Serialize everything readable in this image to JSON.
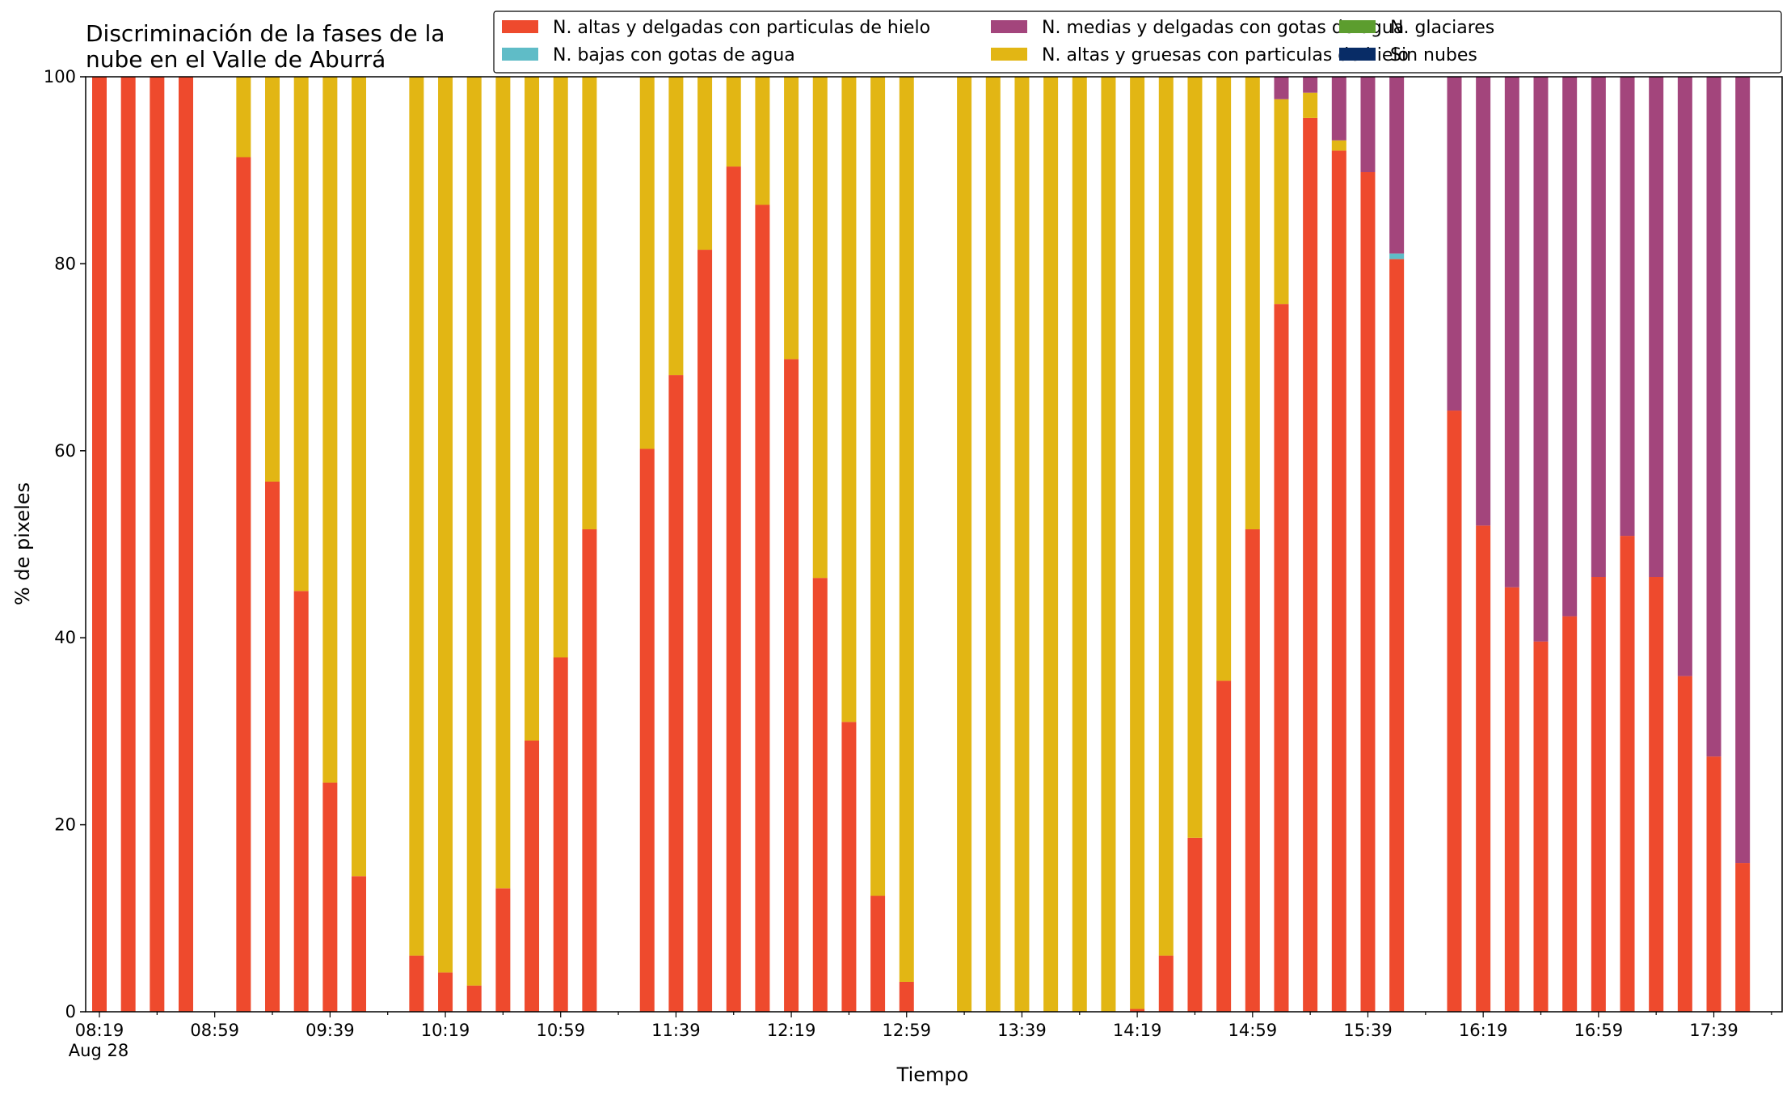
{
  "chart_data": {
    "type": "bar",
    "stacked": true,
    "title_lines": [
      "Discriminación de la fases de la",
      "nube en el Valle de Aburrá"
    ],
    "xlabel": "Tiempo",
    "ylabel": "% de pixeles",
    "ylim": [
      0,
      100
    ],
    "yticks": [
      0,
      20,
      40,
      60,
      80,
      100
    ],
    "grid": false,
    "legend_position": "top-right",
    "x_start": "08:19",
    "x_step_minutes": 10,
    "x_tick_labels": [
      "08:19",
      "08:59",
      "09:39",
      "10:19",
      "10:59",
      "11:39",
      "12:19",
      "12:59",
      "13:39",
      "14:19",
      "14:59",
      "15:39",
      "16:19",
      "16:59",
      "17:39"
    ],
    "x_date_label": "Aug 28",
    "times": [
      "08:19",
      "08:29",
      "08:39",
      "08:49",
      "08:59",
      "09:09",
      "09:19",
      "09:29",
      "09:39",
      "09:49",
      "09:59",
      "10:09",
      "10:19",
      "10:29",
      "10:39",
      "10:49",
      "10:59",
      "11:09",
      "11:19",
      "11:29",
      "11:39",
      "11:49",
      "11:59",
      "12:09",
      "12:19",
      "12:29",
      "12:39",
      "12:49",
      "12:59",
      "13:09",
      "13:19",
      "13:29",
      "13:39",
      "13:49",
      "13:59",
      "14:09",
      "14:19",
      "14:29",
      "14:39",
      "14:49",
      "14:59",
      "15:09",
      "15:19",
      "15:29",
      "15:39",
      "15:49",
      "15:59",
      "16:09",
      "16:19",
      "16:29",
      "16:39",
      "16:49",
      "16:59",
      "17:09",
      "17:19",
      "17:29",
      "17:39",
      "17:49"
    ],
    "series": [
      {
        "name": "N. altas y delgadas con particulas de hielo",
        "color": "#ee4a2d",
        "values": [
          100,
          100,
          100,
          100,
          null,
          91.4,
          56.7,
          45.0,
          24.5,
          14.5,
          null,
          6.0,
          4.2,
          2.8,
          13.2,
          29.0,
          37.9,
          51.6,
          null,
          60.2,
          68.1,
          81.5,
          90.4,
          86.3,
          69.8,
          46.4,
          31.0,
          12.4,
          3.2,
          null,
          0,
          0,
          0,
          0,
          0,
          0,
          0.3,
          6.0,
          18.6,
          35.4,
          51.6,
          75.7,
          95.6,
          92.1,
          89.8,
          80.5,
          null,
          64.3,
          52.0,
          45.4,
          39.6,
          42.3,
          46.5,
          50.9,
          46.5,
          35.9,
          27.3,
          15.9
        ]
      },
      {
        "name": "N. altas y gruesas con particulas de hielo",
        "color": "#e2b614",
        "values": [
          0,
          0,
          0,
          0,
          null,
          8.6,
          43.3,
          55.0,
          75.5,
          85.5,
          null,
          94.0,
          95.8,
          97.2,
          86.8,
          71.0,
          62.1,
          48.4,
          null,
          39.8,
          31.9,
          18.5,
          9.6,
          13.7,
          30.2,
          53.6,
          69.0,
          87.6,
          96.8,
          null,
          100,
          100,
          100,
          100,
          100,
          100,
          99.7,
          94.0,
          81.4,
          64.6,
          48.4,
          21.9,
          2.7,
          1.1,
          0,
          0,
          null,
          0,
          0,
          0,
          0,
          0,
          0,
          0,
          0,
          0,
          0,
          0
        ]
      },
      {
        "name": "N. bajas con gotas de agua",
        "color": "#5fbcc7",
        "values": [
          0,
          0,
          0,
          0,
          null,
          0,
          0,
          0,
          0,
          0,
          null,
          0,
          0,
          0,
          0,
          0,
          0,
          0,
          null,
          0,
          0,
          0,
          0,
          0,
          0,
          0,
          0,
          0,
          0,
          null,
          0,
          0,
          0,
          0,
          0,
          0,
          0,
          0,
          0,
          0,
          0,
          0,
          0,
          0,
          0,
          0.6,
          null,
          0,
          0,
          0,
          0,
          0,
          0,
          0,
          0,
          0,
          0,
          0
        ]
      },
      {
        "name": "N. medias y delgadas con gotas de agua",
        "color": "#a3457c",
        "values": [
          0,
          0,
          0,
          0,
          null,
          0,
          0,
          0,
          0,
          0,
          null,
          0,
          0,
          0,
          0,
          0,
          0,
          0,
          null,
          0,
          0,
          0,
          0,
          0,
          0,
          0,
          0,
          0,
          0,
          null,
          0,
          0,
          0,
          0,
          0,
          0,
          0,
          0,
          0,
          0,
          0,
          2.4,
          1.7,
          6.8,
          10.2,
          18.9,
          null,
          35.7,
          48.0,
          54.6,
          60.4,
          57.7,
          53.5,
          49.1,
          53.5,
          64.1,
          72.7,
          84.1
        ]
      },
      {
        "name": "N. glaciares",
        "color": "#5c9d2e",
        "values": [
          0,
          0,
          0,
          0,
          null,
          0,
          0,
          0,
          0,
          0,
          null,
          0,
          0,
          0,
          0,
          0,
          0,
          0,
          null,
          0,
          0,
          0,
          0,
          0,
          0,
          0,
          0,
          0,
          0,
          null,
          0,
          0,
          0,
          0,
          0,
          0,
          0,
          0,
          0,
          0,
          0,
          0,
          0,
          0,
          0,
          0,
          null,
          0,
          0,
          0,
          0,
          0,
          0,
          0,
          0,
          0,
          0,
          0
        ]
      },
      {
        "name": "Sin nubes",
        "color": "#082c66",
        "values": [
          0,
          0,
          0,
          0,
          null,
          0,
          0,
          0,
          0,
          0,
          null,
          0,
          0,
          0,
          0,
          0,
          0,
          0,
          null,
          0,
          0,
          0,
          0,
          0,
          0,
          0,
          0,
          0,
          0,
          null,
          0,
          0,
          0,
          0,
          0,
          0,
          0,
          0,
          0,
          0,
          0,
          0,
          0,
          0,
          0,
          0,
          null,
          0,
          0,
          0,
          0,
          0,
          0,
          0,
          0,
          0,
          0,
          0
        ]
      }
    ],
    "legend_entries": [
      {
        "label": "N. altas y delgadas con particulas de hielo",
        "color": "#ee4a2d"
      },
      {
        "label": "N. bajas con gotas de agua",
        "color": "#5fbcc7"
      },
      {
        "label": "N. medias y delgadas con gotas de agua",
        "color": "#a3457c"
      },
      {
        "label": "N. altas y gruesas con particulas de hielo",
        "color": "#e2b614"
      },
      {
        "label": "N. glaciares",
        "color": "#5c9d2e"
      },
      {
        "label": "Sin nubes",
        "color": "#082c66"
      }
    ]
  }
}
